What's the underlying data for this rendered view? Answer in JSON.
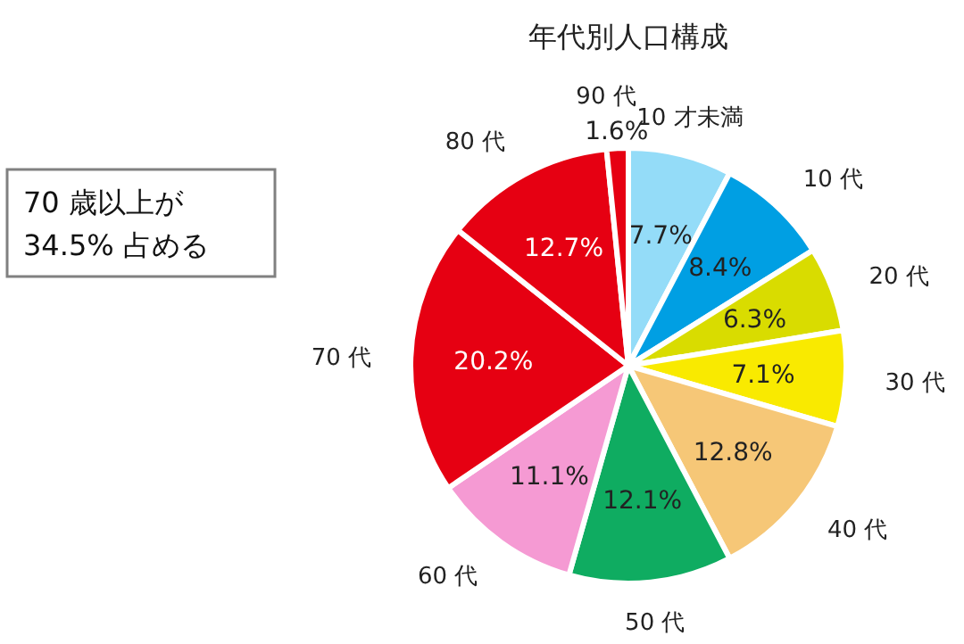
{
  "chart_data": {
    "type": "pie",
    "title": "年代別人口構成",
    "categories": [
      "10 才未満",
      "10 代",
      "20 代",
      "30 代",
      "40 代",
      "50 代",
      "60 代",
      "70 代",
      "80 代",
      "90 代"
    ],
    "values": [
      7.7,
      8.4,
      6.3,
      7.1,
      12.8,
      12.1,
      11.1,
      20.2,
      12.7,
      1.6
    ],
    "value_labels": [
      "7.7%",
      "8.4%",
      "6.3%",
      "7.1%",
      "12.8%",
      "12.1%",
      "11.1%",
      "20.2%",
      "12.7%",
      "1.6%"
    ],
    "colors": [
      "#94dcf8",
      "#009fe3",
      "#d9dc00",
      "#f9ea00",
      "#f6c777",
      "#0fac61",
      "#f59ad3",
      "#e60012",
      "#e60012",
      "#e60012"
    ],
    "annotations": [
      "70 歳以上が\n34.5% 占める"
    ]
  }
}
